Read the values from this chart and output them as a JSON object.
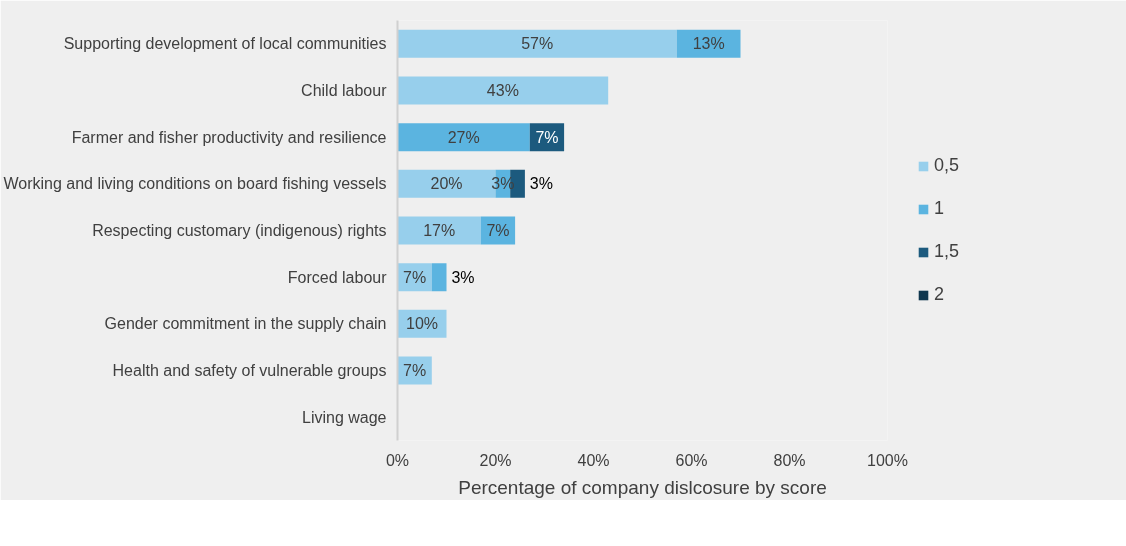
{
  "chart_data": {
    "type": "bar",
    "orientation": "horizontal",
    "stacked": true,
    "xlabel": "Percentage of company dislcosure by score",
    "categories": [
      "Supporting development of local communities",
      "Child labour",
      "Farmer and fisher productivity and resilience",
      "Working and living conditions on board fishing vessels",
      "Respecting customary (indigenous) rights",
      "Forced labour",
      "Gender commitment in the supply chain",
      "Health and safety of vulnerable groups",
      "Living wage"
    ],
    "series": [
      {
        "name": "0,5",
        "color": "#97cfec",
        "values": [
          57,
          43,
          null,
          20,
          17,
          7,
          10,
          7,
          null
        ],
        "value_labels": [
          "57%",
          "43%",
          null,
          "20%",
          "17%",
          "7%",
          "10%",
          "7%",
          null
        ]
      },
      {
        "name": "1",
        "color": "#5bb4e0",
        "values": [
          13,
          null,
          27,
          3,
          7,
          3,
          null,
          null,
          null
        ],
        "value_labels": [
          "13%",
          null,
          "27%",
          "3%",
          "7%",
          "3%",
          null,
          null,
          null
        ]
      },
      {
        "name": "1,5",
        "color": "#1c5a7e",
        "values": [
          null,
          null,
          7,
          3,
          null,
          null,
          null,
          null,
          null
        ],
        "value_labels": [
          null,
          null,
          "7%",
          "3%",
          null,
          null,
          null,
          null,
          null
        ]
      },
      {
        "name": "2",
        "color": "#10374f",
        "values": [
          null,
          null,
          null,
          null,
          null,
          null,
          null,
          null,
          null
        ]
      }
    ],
    "xlim": [
      0,
      100
    ],
    "xticks": [
      {
        "value": 0,
        "label": "0%"
      },
      {
        "value": 20,
        "label": "20%"
      },
      {
        "value": 40,
        "label": "40%"
      },
      {
        "value": 60,
        "label": "60%"
      },
      {
        "value": 80,
        "label": "80%"
      },
      {
        "value": 100,
        "label": "100%"
      }
    ],
    "grid": false,
    "legend": "right"
  }
}
